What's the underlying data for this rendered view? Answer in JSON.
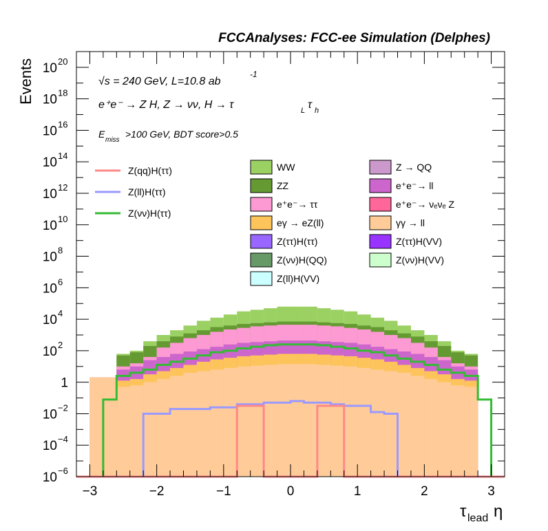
{
  "header": {
    "title": "FCCAnalyses: FCC-ee Simulation (Delphes)"
  },
  "annotations": {
    "energy": "√s = 240 GeV, L=10.8 ab",
    "energy_sup": "-1",
    "process": "e⁺e⁻ → Z H, Z → νν, H → τ",
    "process_sub1": "L",
    "process_tau2": "τ",
    "process_sub2": "h",
    "cut_e": "E",
    "cut_sub": "miss",
    "cut_rest": ">100 GeV, BDT score>0.5"
  },
  "axes": {
    "ylabel": "Events",
    "xlabel_main": "τ",
    "xlabel_sub": "lead",
    "xlabel_eta": "η"
  },
  "colors": {
    "WW": "#9bd063",
    "ZZ": "#659a33",
    "ee_tautau": "#fe9ad3",
    "egamma_eZll": "#fec45c",
    "Ztautau_Htautau": "#9966ff",
    "Znunu_HQQ": "#669966",
    "Zll_HVV": "#ccffff",
    "Z_QQ": "#cc99cc",
    "ee_ll": "#cc66cc",
    "ee_nunuZ": "#ff6699",
    "gammagamma_ll": "#ffcc99",
    "Ztautau_HVV": "#9933ff",
    "Znunu_HVV": "#ccffcc",
    "line_Zqq": "#ff8888",
    "line_Zll": "#9999ff",
    "line_Znunu": "#33bb33"
  },
  "legend_lines": [
    {
      "label": "Z(qq)H(ττ)",
      "color": "#ff8888"
    },
    {
      "label": "Z(ll)H(ττ)",
      "color": "#9999ff"
    },
    {
      "label": "Z(νν)H(ττ)",
      "color": "#33bb33"
    }
  ],
  "legend_col1": [
    {
      "label": "WW",
      "color": "#9bd063"
    },
    {
      "label": "ZZ",
      "color": "#659a33"
    },
    {
      "label": "e⁺e⁻→ ττ",
      "color": "#fe9ad3"
    },
    {
      "label": "eγ → eZ(ll)",
      "color": "#fec45c"
    },
    {
      "label": "Z(ττ)H(ττ)",
      "color": "#9966ff"
    },
    {
      "label": "Z(νν)H(QQ)",
      "color": "#669966"
    },
    {
      "label": "Z(ll)H(VV)",
      "color": "#ccffff"
    }
  ],
  "legend_col2": [
    {
      "label": "Z → QQ",
      "color": "#cc99cc"
    },
    {
      "label": "e⁺e⁻→ ll",
      "color": "#cc66cc"
    },
    {
      "label": "e⁺e⁻→ νₑνₑ Z",
      "color": "#ff6699"
    },
    {
      "label": "γγ → ll",
      "color": "#ffcc99"
    },
    {
      "label": "Z(ττ)H(VV)",
      "color": "#9933ff"
    },
    {
      "label": "Z(νν)H(VV)",
      "color": "#ccffcc"
    }
  ],
  "x_ticks": [
    "−3",
    "−2",
    "−1",
    "0",
    "1",
    "2",
    "3"
  ],
  "y_ticks": [
    {
      "base": "10",
      "exp": "−6"
    },
    {
      "base": "10",
      "exp": "−4"
    },
    {
      "base": "10",
      "exp": "−2"
    },
    {
      "base": "1",
      "exp": ""
    },
    {
      "base": "10",
      "exp": "2"
    },
    {
      "base": "10",
      "exp": "4"
    },
    {
      "base": "10",
      "exp": "6"
    },
    {
      "base": "10",
      "exp": "8"
    },
    {
      "base": "10",
      "exp": "10"
    },
    {
      "base": "10",
      "exp": "12"
    },
    {
      "base": "10",
      "exp": "14"
    },
    {
      "base": "10",
      "exp": "16"
    },
    {
      "base": "10",
      "exp": "18"
    },
    {
      "base": "10",
      "exp": "20"
    }
  ],
  "chart_data": {
    "type": "area",
    "title": "FCCAnalyses: FCC-ee Simulation (Delphes)",
    "xlabel": "τlead η",
    "ylabel": "Events",
    "y_scale": "log",
    "xlim": [
      -3.2,
      3.2
    ],
    "ylim_log10": [
      -6,
      21
    ],
    "grid": false,
    "bin_edges": [
      -3.2,
      -3.0,
      -2.8,
      -2.6,
      -2.4,
      -2.2,
      -2.0,
      -1.8,
      -1.6,
      -1.4,
      -1.2,
      -1.0,
      -0.8,
      -0.6,
      -0.4,
      -0.2,
      0.0,
      0.2,
      0.4,
      0.6,
      0.8,
      1.0,
      1.2,
      1.4,
      1.6,
      1.8,
      2.0,
      2.2,
      2.4,
      2.6,
      2.8,
      3.0,
      3.2
    ],
    "stack_log10_tops": [
      {
        "name": "WW",
        "values": [
          -6,
          0.3,
          0.3,
          1.8,
          2.0,
          2.6,
          3.0,
          3.3,
          3.6,
          3.9,
          4.1,
          4.3,
          4.5,
          4.6,
          4.7,
          4.8,
          4.8,
          4.8,
          4.7,
          4.6,
          4.5,
          4.3,
          4.1,
          3.9,
          3.6,
          3.3,
          3.0,
          2.6,
          2.0,
          1.8,
          -6,
          -6
        ]
      },
      {
        "name": "ZZ",
        "values": [
          -6,
          0.3,
          0.3,
          1.7,
          1.9,
          2.3,
          2.6,
          2.9,
          3.1,
          3.3,
          3.5,
          3.6,
          3.7,
          3.75,
          3.8,
          3.85,
          3.85,
          3.85,
          3.8,
          3.75,
          3.7,
          3.6,
          3.5,
          3.3,
          3.1,
          2.9,
          2.6,
          2.3,
          1.9,
          1.7,
          -6,
          -6
        ]
      },
      {
        "name": "e⁺e⁻→ ττ",
        "values": [
          -6,
          0.3,
          0.3,
          1.0,
          1.2,
          1.6,
          2.2,
          2.5,
          2.8,
          3.0,
          3.2,
          3.35,
          3.45,
          3.55,
          3.6,
          3.65,
          3.65,
          3.65,
          3.6,
          3.55,
          3.45,
          3.35,
          3.2,
          3.0,
          2.8,
          2.5,
          2.2,
          1.6,
          1.2,
          1.0,
          -6,
          -6
        ]
      },
      {
        "name": "e⁺e⁻→ ll",
        "values": [
          -6,
          0.3,
          0.3,
          0.8,
          1.0,
          1.4,
          1.6,
          1.8,
          1.95,
          2.1,
          2.25,
          2.4,
          2.5,
          2.55,
          2.6,
          2.65,
          2.65,
          2.65,
          2.6,
          2.55,
          2.5,
          2.4,
          2.25,
          2.1,
          1.95,
          1.8,
          1.6,
          1.4,
          1.0,
          0.8,
          -6,
          -6
        ]
      },
      {
        "name": "eγ → eZ(ll)",
        "values": [
          -6,
          0.3,
          0.3,
          0.1,
          0.2,
          0.5,
          0.7,
          0.9,
          1.1,
          1.3,
          1.45,
          1.55,
          1.65,
          1.7,
          1.75,
          1.8,
          1.8,
          1.8,
          1.75,
          1.7,
          1.65,
          1.55,
          1.45,
          1.3,
          1.1,
          0.9,
          0.7,
          0.5,
          0.2,
          0.1,
          -6,
          -6
        ]
      },
      {
        "name": "γγ → ll",
        "values": [
          -6,
          0.3,
          0.3,
          -0.3,
          -0.2,
          0.0,
          0.2,
          0.4,
          0.6,
          0.7,
          0.8,
          0.9,
          1.0,
          1.05,
          1.1,
          1.15,
          1.15,
          1.15,
          1.1,
          1.05,
          1.0,
          0.9,
          0.8,
          0.7,
          0.6,
          0.4,
          0.2,
          0.0,
          -0.2,
          -0.3,
          -6,
          -6
        ]
      }
    ],
    "lines_log10": [
      {
        "name": "Z(νν)H(ττ)",
        "values": [
          -6,
          -6,
          -1.1,
          0.4,
          0.6,
          0.8,
          1.1,
          1.3,
          1.5,
          1.7,
          1.9,
          2.0,
          2.15,
          2.25,
          2.35,
          2.4,
          2.4,
          2.4,
          2.35,
          2.25,
          2.15,
          2.0,
          1.9,
          1.7,
          1.5,
          1.3,
          1.1,
          0.8,
          0.6,
          0.4,
          -1.1,
          -6
        ]
      },
      {
        "name": "Z(ll)H(ττ)",
        "values": [
          -6,
          -6,
          -6,
          -6,
          -6,
          -2.0,
          -2.0,
          -1.7,
          -1.7,
          -1.7,
          -1.6,
          -1.6,
          -1.4,
          -1.4,
          -1.3,
          -1.3,
          -1.2,
          -1.3,
          -1.3,
          -1.4,
          -1.5,
          -1.5,
          -1.9,
          -2.0,
          -6,
          -6,
          -6,
          -6,
          -6,
          -6,
          -6,
          -6
        ]
      },
      {
        "name": "Z(qq)H(ττ)",
        "values": [
          -6,
          -6,
          -6,
          -6,
          -6,
          -6,
          -6,
          -6,
          -6,
          -6,
          -6,
          -6,
          -1.5,
          -1.5,
          -6,
          -6,
          -6,
          -6,
          -1.5,
          -1.5,
          -6,
          -6,
          -6,
          -6,
          -6,
          -6,
          -6,
          -6,
          -6,
          -6,
          -6,
          -6
        ]
      }
    ]
  }
}
